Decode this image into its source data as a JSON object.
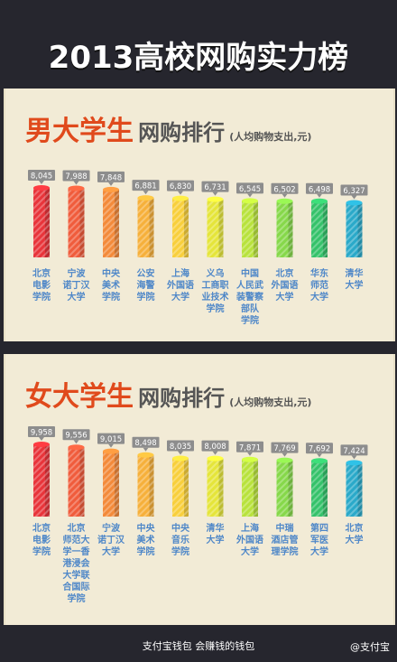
{
  "header": {
    "title": "2013高校网购实力榜"
  },
  "sections": [
    {
      "id": "male",
      "title_main": "男大学生",
      "title_sub": "网购排行",
      "note": "(人均购物支出,元)"
    },
    {
      "id": "female",
      "title_main": "女大学生",
      "title_sub": "网购排行",
      "note": "(人均购物支出,元)"
    }
  ],
  "footer": {
    "slogan": "支付宝钱包 会赚钱的钱包",
    "brand": "@支付宝"
  },
  "colors": [
    "#e8343a",
    "#f05c3c",
    "#f38a3a",
    "#f6b03b",
    "#f8cf3c",
    "#e5e53a",
    "#b8e23c",
    "#86d84a",
    "#35c26a",
    "#2aa9c9"
  ],
  "chart_data": [
    {
      "type": "bar",
      "title": "男大学生网购排行",
      "ylabel": "人均购物支出,元",
      "categories": [
        "北京电影学院",
        "宁波诺丁汉大学",
        "中央美术学院",
        "公安海警学院",
        "上海外国语大学",
        "义乌工商职业技术学院",
        "中国人民武装警察部队学院",
        "北京外国语大学",
        "华东师范大学",
        "清华大学"
      ],
      "category_lines": [
        [
          "北京",
          "电影",
          "学院"
        ],
        [
          "宁波",
          "诺丁汉",
          "大学"
        ],
        [
          "中央",
          "美术",
          "学院"
        ],
        [
          "公安",
          "海警",
          "学院"
        ],
        [
          "上海",
          "外国语",
          "大学"
        ],
        [
          "义乌",
          "工商职",
          "业技术",
          "学院"
        ],
        [
          "中国",
          "人民武",
          "装警察",
          "部队",
          "学院"
        ],
        [
          "北京",
          "外国语",
          "大学"
        ],
        [
          "华东",
          "师范",
          "大学"
        ],
        [
          "清华",
          "大学"
        ]
      ],
      "values": [
        8045,
        7988,
        7848,
        6881,
        6830,
        6731,
        6545,
        6502,
        6498,
        6327
      ],
      "value_labels": [
        "8,045",
        "7,988",
        "7,848",
        "6,881",
        "6,830",
        "6,731",
        "6,545",
        "6,502",
        "6,498",
        "6,327"
      ],
      "ylim": [
        0,
        8045
      ]
    },
    {
      "type": "bar",
      "title": "女大学生网购排行",
      "ylabel": "人均购物支出,元",
      "categories": [
        "北京电影学院",
        "北京师范大学-香港浸会大学联合国际学院",
        "宁波诺丁汉大学",
        "中央美术学院",
        "中央音乐学院",
        "清华大学",
        "上海外国语大学",
        "中瑞酒店管理学院",
        "第四军医大学",
        "北京大学"
      ],
      "category_lines": [
        [
          "北京",
          "电影",
          "学院"
        ],
        [
          "北京",
          "师范大",
          "学一香",
          "港浸会",
          "大学联",
          "合国际",
          "学院"
        ],
        [
          "宁波",
          "诺丁汉",
          "大学"
        ],
        [
          "中央",
          "美术",
          "学院"
        ],
        [
          "中央",
          "音乐",
          "学院"
        ],
        [
          "清华",
          "大学"
        ],
        [
          "上海",
          "外国语",
          "大学"
        ],
        [
          "中瑞",
          "酒店管",
          "理学院"
        ],
        [
          "第四",
          "军医",
          "大学"
        ],
        [
          "北京",
          "大学"
        ]
      ],
      "values": [
        9958,
        9556,
        9015,
        8498,
        8035,
        8008,
        7871,
        7769,
        7692,
        7424
      ],
      "value_labels": [
        "9,958",
        "9,556",
        "9,015",
        "8,498",
        "8,035",
        "8,008",
        "7,871",
        "7,769",
        "7,692",
        "7,424"
      ],
      "ylim": [
        0,
        9958
      ]
    }
  ]
}
